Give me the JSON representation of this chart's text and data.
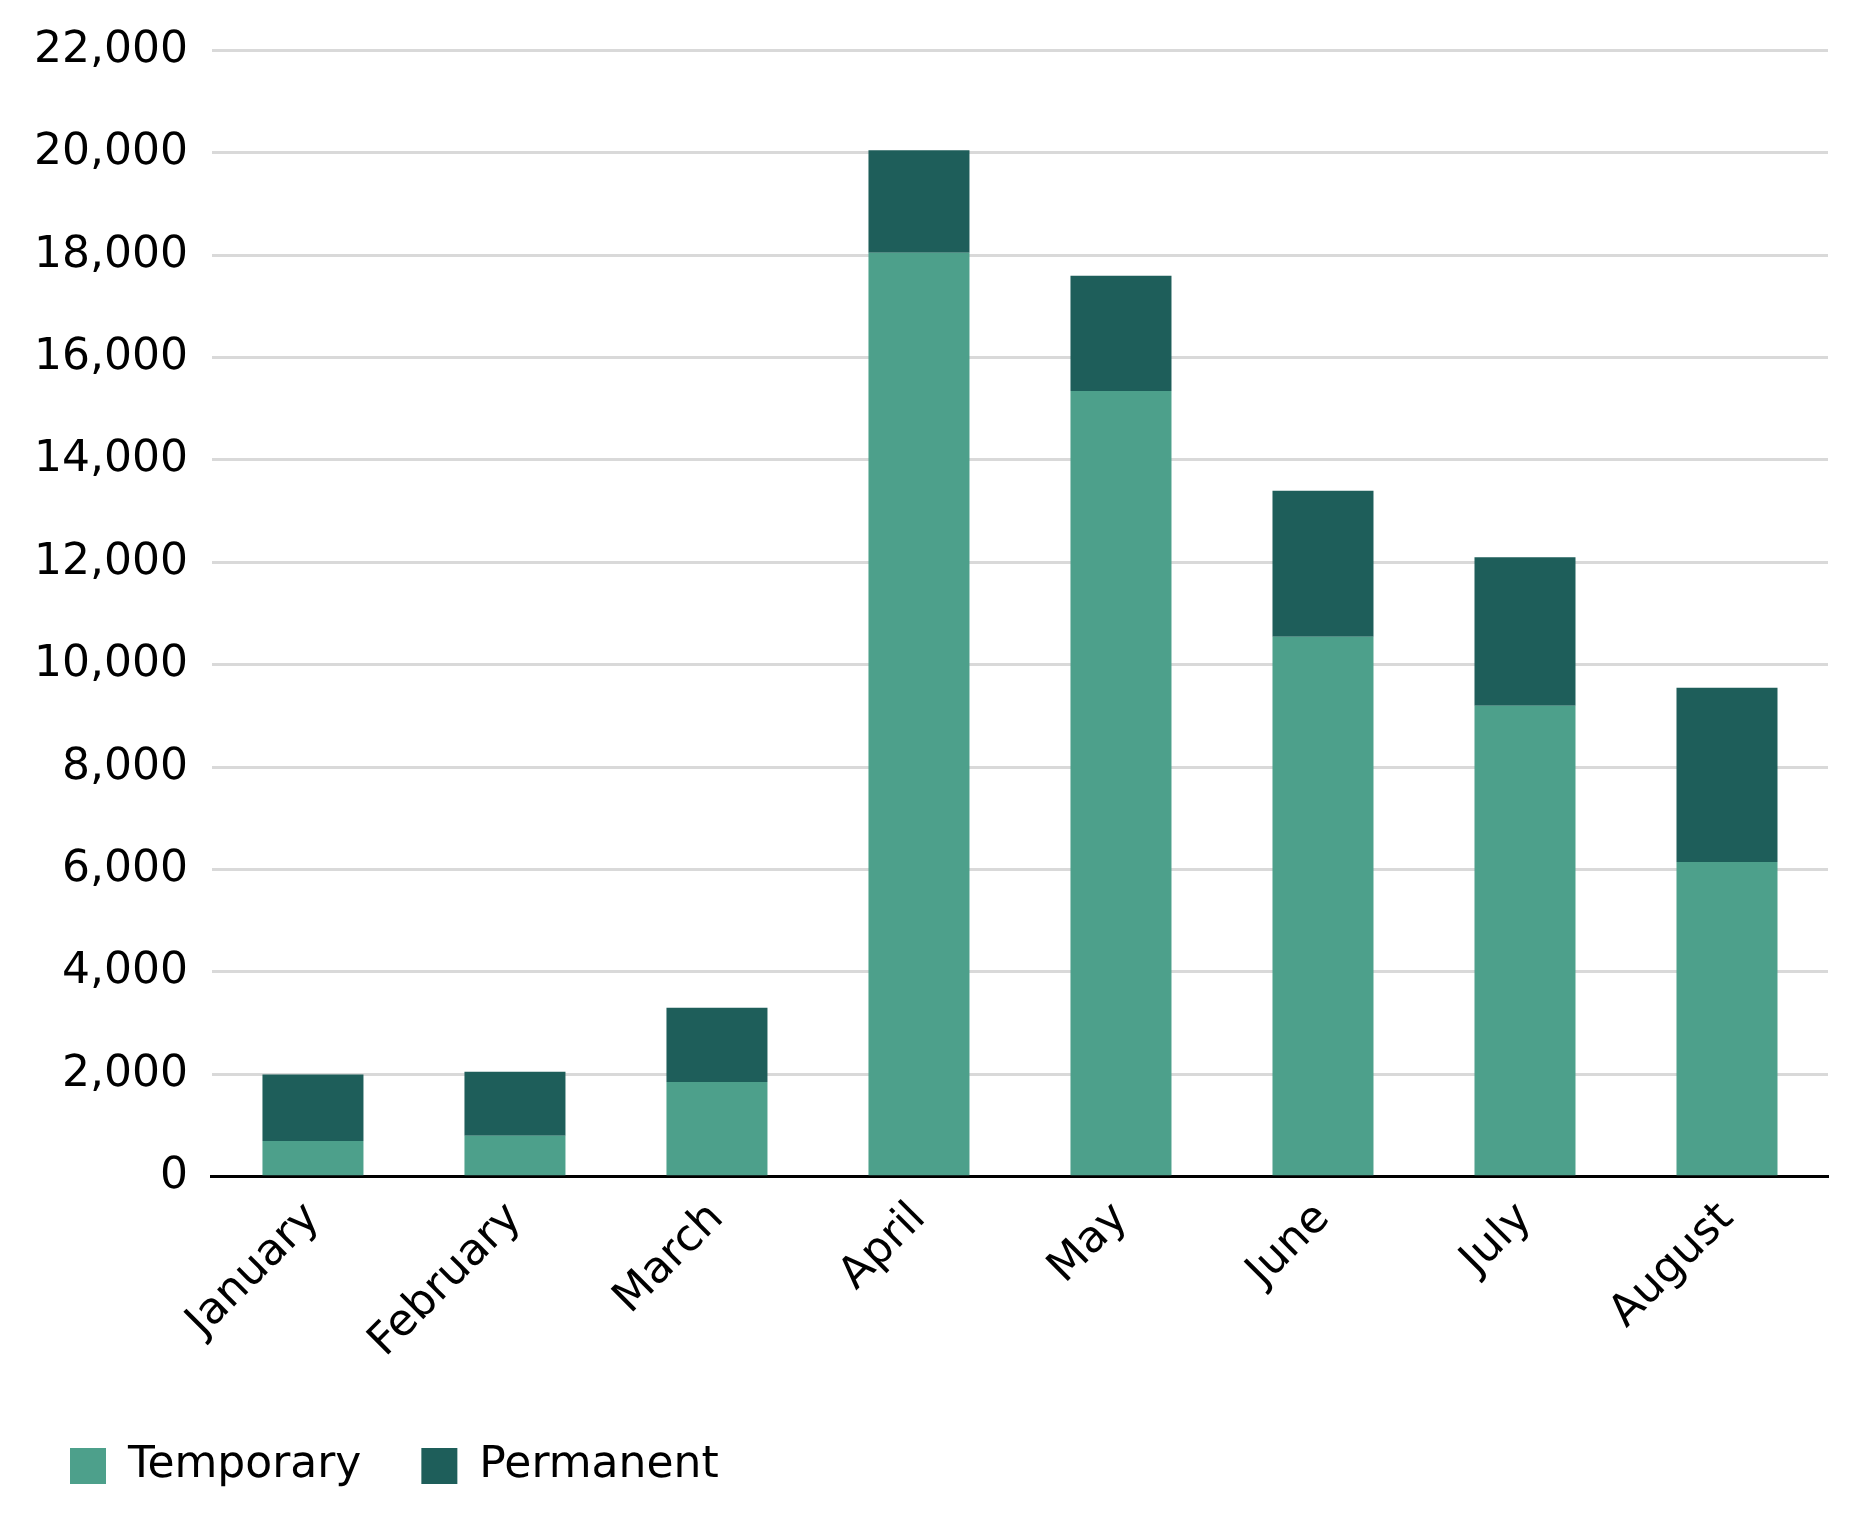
{
  "chart_data": {
    "type": "bar",
    "stacked": true,
    "categories": [
      "January",
      "February",
      "March",
      "April",
      "May",
      "June",
      "July",
      "August"
    ],
    "series": [
      {
        "name": "Temporary",
        "color": "#4da08b",
        "values": [
          700,
          800,
          1850,
          18050,
          15350,
          10550,
          9200,
          6150
        ]
      },
      {
        "name": "Permanent",
        "color": "#1e5e5a",
        "values": [
          1300,
          1250,
          1450,
          2000,
          2250,
          2850,
          2900,
          3400
        ]
      }
    ],
    "ylim": [
      0,
      22000
    ],
    "yticks": [
      {
        "value": 0,
        "label": "0"
      },
      {
        "value": 2000,
        "label": "2,000"
      },
      {
        "value": 4000,
        "label": "4,000"
      },
      {
        "value": 6000,
        "label": "6,000"
      },
      {
        "value": 8000,
        "label": "8,000"
      },
      {
        "value": 10000,
        "label": "10,000"
      },
      {
        "value": 12000,
        "label": "12,000"
      },
      {
        "value": 14000,
        "label": "14,000"
      },
      {
        "value": 16000,
        "label": "16,000"
      },
      {
        "value": 18000,
        "label": "18,000"
      },
      {
        "value": 20000,
        "label": "20,000"
      },
      {
        "value": 22000,
        "label": "22,000"
      }
    ],
    "grid": "y",
    "legend": "bottom left"
  }
}
